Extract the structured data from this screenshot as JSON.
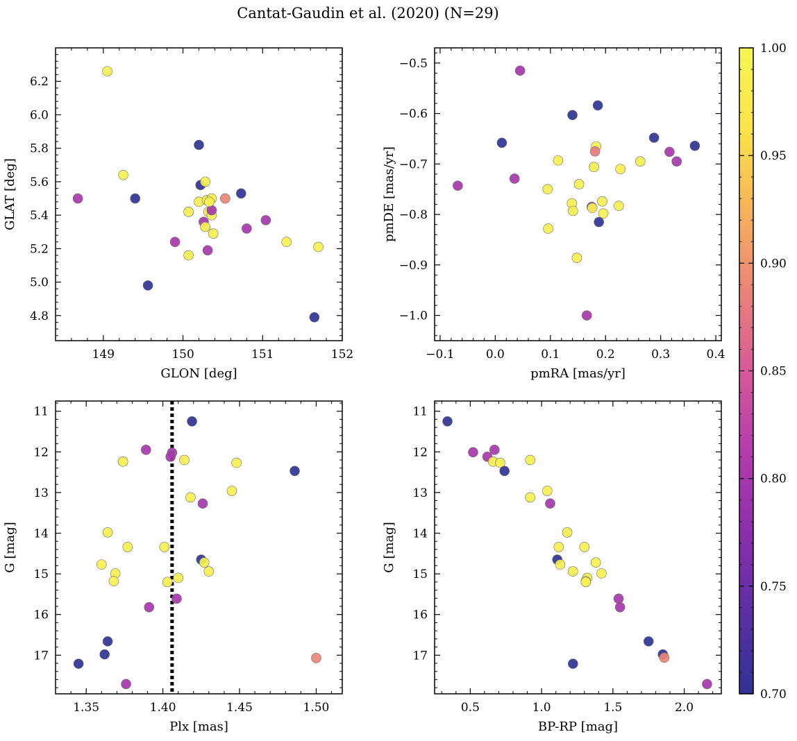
{
  "figure_title": "Cantat-Gaudin et al. (2020) (N=29)",
  "colorbar": {
    "min": 0.7,
    "max": 1.0,
    "ticks": [
      0.7,
      0.75,
      0.8,
      0.85,
      0.9,
      0.95,
      1.0
    ],
    "tick_labels": [
      "0.70",
      "0.75",
      "0.80",
      "0.85",
      "0.90",
      "0.95",
      "1.00"
    ],
    "colormap": "plasma",
    "stops": [
      "#2f3393",
      "#5b2fa3",
      "#8a2fac",
      "#b43cab",
      "#d55a99",
      "#ea8478",
      "#f7b35a",
      "#fce44a",
      "#f5f553"
    ]
  },
  "chart_data": [
    {
      "type": "scatter",
      "title": "",
      "xlabel": "GLON [deg]",
      "ylabel": "GLAT [deg]",
      "xlim": [
        148.4,
        152.0
      ],
      "ylim": [
        4.65,
        6.4
      ],
      "xticks": [
        149,
        150,
        151,
        152
      ],
      "xtick_labels": [
        "149",
        "150",
        "151",
        "152"
      ],
      "yticks": [
        4.8,
        5.0,
        5.2,
        5.4,
        5.6,
        5.8,
        6.0,
        6.2
      ],
      "ytick_labels": [
        "4.8",
        "5.0",
        "5.2",
        "5.4",
        "5.6",
        "5.8",
        "6.0",
        "6.2"
      ],
      "points": [
        [
          149.05,
          6.26,
          0.99
        ],
        [
          148.68,
          5.5,
          0.8
        ],
        [
          149.25,
          5.64,
          0.99
        ],
        [
          149.4,
          5.5,
          0.7
        ],
        [
          149.56,
          4.98,
          0.7
        ],
        [
          149.9,
          5.24,
          0.8
        ],
        [
          150.07,
          5.42,
          0.99
        ],
        [
          150.07,
          5.16,
          0.99
        ],
        [
          150.2,
          5.82,
          0.7
        ],
        [
          150.22,
          5.58,
          0.7
        ],
        [
          150.2,
          5.48,
          0.99
        ],
        [
          150.28,
          5.6,
          0.99
        ],
        [
          150.3,
          5.49,
          0.99
        ],
        [
          150.36,
          5.5,
          0.99
        ],
        [
          150.32,
          5.42,
          0.99
        ],
        [
          150.36,
          5.4,
          0.99
        ],
        [
          150.36,
          5.43,
          0.8
        ],
        [
          150.26,
          5.36,
          0.8
        ],
        [
          150.28,
          5.33,
          0.99
        ],
        [
          150.38,
          5.29,
          0.99
        ],
        [
          150.31,
          5.19,
          0.8
        ],
        [
          150.53,
          5.5,
          0.89
        ],
        [
          150.73,
          5.53,
          0.7
        ],
        [
          150.8,
          5.32,
          0.8
        ],
        [
          151.04,
          5.37,
          0.8
        ],
        [
          151.3,
          5.24,
          0.99
        ],
        [
          151.7,
          5.21,
          0.99
        ],
        [
          151.65,
          4.79,
          0.7
        ],
        [
          150.33,
          5.48,
          0.99
        ]
      ]
    },
    {
      "type": "scatter",
      "title": "",
      "xlabel": "pmRA [mas/yr]",
      "ylabel": "pmDE [mas/yr]",
      "xlim": [
        -0.11,
        0.41
      ],
      "ylim": [
        -1.05,
        -0.47
      ],
      "xticks": [
        -0.1,
        0.0,
        0.1,
        0.2,
        0.3,
        0.4
      ],
      "xtick_labels": [
        "−0.1",
        "0.0",
        "0.1",
        "0.2",
        "0.3",
        "0.4"
      ],
      "yticks": [
        -1.0,
        -0.9,
        -0.8,
        -0.7,
        -0.6,
        -0.5
      ],
      "ytick_labels": [
        "−1.0",
        "−0.9",
        "−0.8",
        "−0.7",
        "−0.6",
        "−0.5"
      ],
      "points": [
        [
          0.045,
          -0.515,
          0.8
        ],
        [
          0.14,
          -0.603,
          0.7
        ],
        [
          0.186,
          -0.584,
          0.7
        ],
        [
          0.012,
          -0.658,
          0.7
        ],
        [
          0.288,
          -0.648,
          0.7
        ],
        [
          0.362,
          -0.664,
          0.7
        ],
        [
          0.183,
          -0.665,
          0.99
        ],
        [
          0.181,
          -0.675,
          0.88
        ],
        [
          0.316,
          -0.676,
          0.8
        ],
        [
          0.329,
          -0.695,
          0.8
        ],
        [
          0.114,
          -0.693,
          0.99
        ],
        [
          0.263,
          -0.695,
          0.99
        ],
        [
          0.179,
          -0.706,
          0.99
        ],
        [
          0.227,
          -0.71,
          0.99
        ],
        [
          -0.068,
          -0.743,
          0.8
        ],
        [
          0.035,
          -0.729,
          0.8
        ],
        [
          0.152,
          -0.74,
          0.99
        ],
        [
          0.095,
          -0.75,
          0.99
        ],
        [
          0.194,
          -0.774,
          0.99
        ],
        [
          0.139,
          -0.778,
          0.99
        ],
        [
          0.175,
          -0.785,
          0.8
        ],
        [
          0.176,
          -0.787,
          0.99
        ],
        [
          0.224,
          -0.783,
          0.99
        ],
        [
          0.141,
          -0.793,
          0.99
        ],
        [
          0.196,
          -0.798,
          0.99
        ],
        [
          0.188,
          -0.815,
          0.7
        ],
        [
          0.096,
          -0.828,
          0.99
        ],
        [
          0.148,
          -0.886,
          0.99
        ],
        [
          0.166,
          -1.0,
          0.8
        ]
      ]
    },
    {
      "type": "scatter",
      "title": "",
      "xlabel": "Plx [mas]",
      "ylabel": "G [mag]",
      "xlim": [
        1.33,
        1.517
      ],
      "ylim": [
        17.95,
        10.75
      ],
      "xticks": [
        1.35,
        1.4,
        1.45,
        1.5
      ],
      "xtick_labels": [
        "1.35",
        "1.40",
        "1.45",
        "1.50"
      ],
      "yticks": [
        11,
        12,
        13,
        14,
        15,
        16,
        17
      ],
      "ytick_labels": [
        "11",
        "12",
        "13",
        "14",
        "15",
        "16",
        "17"
      ],
      "vline": 1.406,
      "points": [
        [
          1.419,
          11.25,
          0.7
        ],
        [
          1.389,
          11.95,
          0.8
        ],
        [
          1.406,
          12.02,
          0.8
        ],
        [
          1.405,
          12.12,
          0.8
        ],
        [
          1.374,
          12.24,
          0.99
        ],
        [
          1.414,
          12.2,
          0.99
        ],
        [
          1.448,
          12.27,
          0.99
        ],
        [
          1.486,
          12.47,
          0.7
        ],
        [
          1.445,
          12.96,
          0.99
        ],
        [
          1.418,
          13.12,
          0.99
        ],
        [
          1.426,
          13.27,
          0.8
        ],
        [
          1.364,
          13.98,
          0.99
        ],
        [
          1.377,
          14.34,
          0.99
        ],
        [
          1.401,
          14.34,
          0.99
        ],
        [
          1.425,
          14.65,
          0.7
        ],
        [
          1.427,
          14.72,
          0.99
        ],
        [
          1.36,
          14.77,
          0.99
        ],
        [
          1.43,
          14.94,
          0.99
        ],
        [
          1.369,
          14.99,
          0.99
        ],
        [
          1.41,
          15.1,
          0.99
        ],
        [
          1.368,
          15.18,
          0.99
        ],
        [
          1.403,
          15.2,
          0.99
        ],
        [
          1.409,
          15.61,
          0.8
        ],
        [
          1.391,
          15.82,
          0.8
        ],
        [
          1.364,
          16.66,
          0.7
        ],
        [
          1.362,
          16.98,
          0.7
        ],
        [
          1.345,
          17.21,
          0.7
        ],
        [
          1.5,
          17.07,
          0.89
        ],
        [
          1.376,
          17.71,
          0.8
        ]
      ]
    },
    {
      "type": "scatter",
      "title": "",
      "xlabel": "BP-RP [mag]",
      "ylabel": "G [mag]",
      "xlim": [
        0.25,
        2.26
      ],
      "ylim": [
        17.95,
        10.75
      ],
      "xticks": [
        0.5,
        1.0,
        1.5,
        2.0
      ],
      "xtick_labels": [
        "0.5",
        "1.0",
        "1.5",
        "2.0"
      ],
      "yticks": [
        11,
        12,
        13,
        14,
        15,
        16,
        17
      ],
      "ytick_labels": [
        "11",
        "12",
        "13",
        "14",
        "15",
        "16",
        "17"
      ],
      "points": [
        [
          0.34,
          11.25,
          0.7
        ],
        [
          0.52,
          12.01,
          0.8
        ],
        [
          0.62,
          12.12,
          0.8
        ],
        [
          0.67,
          11.95,
          0.8
        ],
        [
          0.66,
          12.24,
          0.99
        ],
        [
          0.71,
          12.27,
          0.99
        ],
        [
          0.74,
          12.47,
          0.7
        ],
        [
          0.92,
          12.2,
          0.99
        ],
        [
          0.92,
          13.12,
          0.99
        ],
        [
          1.04,
          12.96,
          0.99
        ],
        [
          1.06,
          13.27,
          0.8
        ],
        [
          1.18,
          13.98,
          0.99
        ],
        [
          1.12,
          14.34,
          0.99
        ],
        [
          1.3,
          14.34,
          0.99
        ],
        [
          1.11,
          14.65,
          0.7
        ],
        [
          1.38,
          14.72,
          0.99
        ],
        [
          1.13,
          14.77,
          0.99
        ],
        [
          1.22,
          14.94,
          0.99
        ],
        [
          1.42,
          14.99,
          0.99
        ],
        [
          1.32,
          15.1,
          0.99
        ],
        [
          1.31,
          15.18,
          0.99
        ],
        [
          1.31,
          15.2,
          0.99
        ],
        [
          1.54,
          15.61,
          0.8
        ],
        [
          1.55,
          15.82,
          0.8
        ],
        [
          1.75,
          16.66,
          0.7
        ],
        [
          1.85,
          16.98,
          0.7
        ],
        [
          1.86,
          17.06,
          0.89
        ],
        [
          1.22,
          17.21,
          0.7
        ],
        [
          2.16,
          17.71,
          0.8
        ]
      ]
    }
  ]
}
